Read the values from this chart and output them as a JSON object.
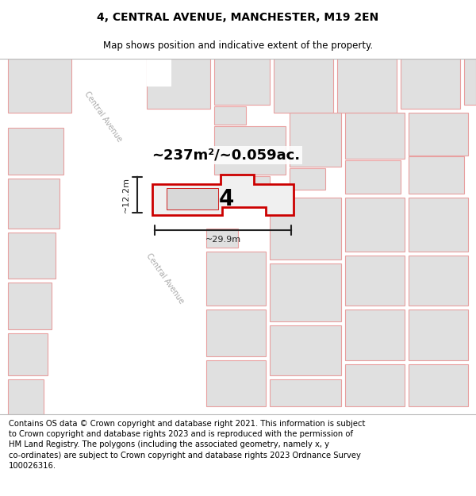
{
  "title": "4, CENTRAL AVENUE, MANCHESTER, M19 2EN",
  "subtitle": "Map shows position and indicative extent of the property.",
  "footer": "Contains OS data © Crown copyright and database right 2021. This information is subject\nto Crown copyright and database rights 2023 and is reproduced with the permission of\nHM Land Registry. The polygons (including the associated geometry, namely x, y\nco-ordinates) are subject to Crown copyright and database rights 2023 Ordnance Survey\n100026316.",
  "area_label": "~237m²/~0.059ac.",
  "number_label": "4",
  "dim_width": "~29.9m",
  "dim_height": "~12.2m",
  "map_bg": "#f2f2f2",
  "building_fill": "#e0e0e0",
  "building_edge": "#e8a0a0",
  "highlight_fill": "#f0f0f0",
  "highlight_edge": "#cc0000",
  "dim_color": "#222222",
  "street_label_color": "#aaaaaa",
  "title_fontsize": 10,
  "subtitle_fontsize": 8.5,
  "footer_fontsize": 7.2,
  "area_fontsize": 13,
  "number_fontsize": 20
}
